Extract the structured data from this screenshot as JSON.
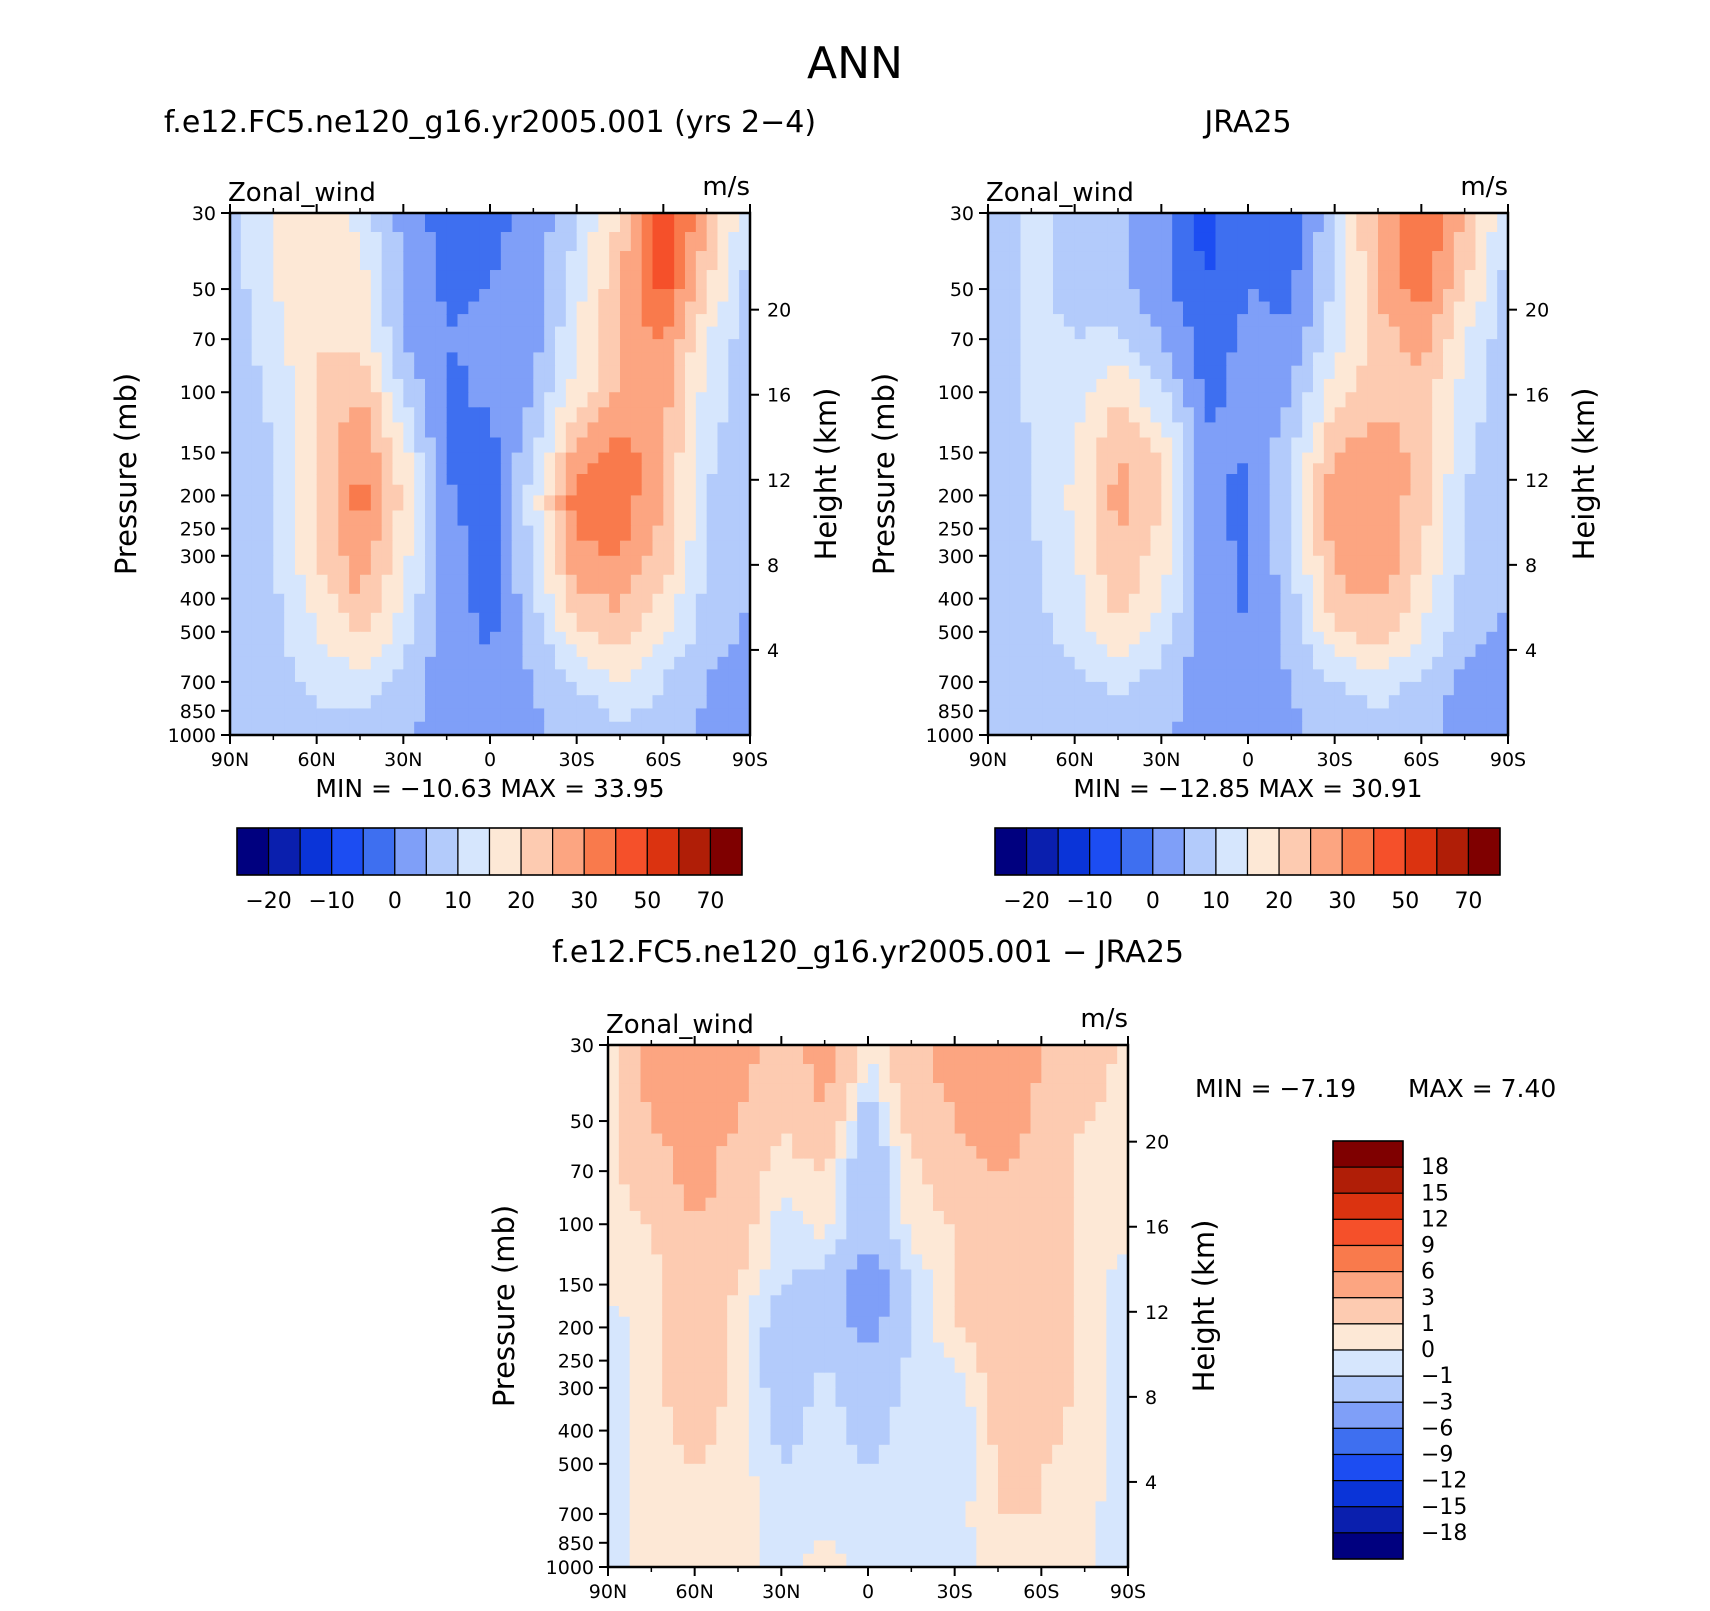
{
  "title": "ANN",
  "chart_data": [
    {
      "type": "heatmap",
      "panel_title": "f.e12.FC5.ne120_g16.yr2005.001 (yrs 2−4)",
      "left_label": "Zonal_wind",
      "right_label": "m/s",
      "ylabel": "Pressure (mb)",
      "ylabel_right": "Height (km)",
      "x_ticks": [
        "90N",
        "60N",
        "30N",
        "0",
        "30S",
        "60S",
        "90S"
      ],
      "y_ticks": [
        "30",
        "50",
        "70",
        "100",
        "150",
        "200",
        "250",
        "300",
        "400",
        "500",
        "700",
        "850",
        "1000"
      ],
      "height_ticks": [
        "20",
        "16",
        "12",
        "8",
        "4"
      ],
      "stats": "MIN = −10.63   MAX =   33.95",
      "colorbar_labels": [
        "−20",
        "−10",
        "0",
        "10",
        "20",
        "30",
        "50",
        "70"
      ],
      "colors": [
        "#00007f",
        "#0a1fae",
        "#0a34d8",
        "#1c4df2",
        "#3e6ff0",
        "#7f9ff8",
        "#b3cbfb",
        "#d6e6fd",
        "#fde8d6",
        "#fdcbb1",
        "#fca581",
        "#f97a4c",
        "#f5502a",
        "#db3310",
        "#b01e07",
        "#7f0000"
      ],
      "lat": [
        "90N",
        "75N",
        "60N",
        "45N",
        "30N",
        "15N",
        "0",
        "15S",
        "30S",
        "45S",
        "60S",
        "75S",
        "90S"
      ],
      "levels_mb": [
        30,
        50,
        70,
        100,
        150,
        200,
        300,
        500,
        700,
        1000
      ],
      "values": [
        [
          2,
          10,
          15,
          8,
          -2,
          -8,
          -6,
          -4,
          5,
          15,
          35,
          20,
          5
        ],
        [
          2,
          10,
          15,
          12,
          0,
          -6,
          -5,
          -3,
          8,
          20,
          32,
          15,
          3
        ],
        [
          2,
          8,
          15,
          14,
          0,
          -5,
          -4,
          -2,
          10,
          20,
          26,
          10,
          2
        ],
        [
          2,
          6,
          15,
          20,
          5,
          -6,
          -4,
          0,
          12,
          20,
          22,
          8,
          2
        ],
        [
          2,
          5,
          15,
          25,
          12,
          -6,
          -7,
          4,
          22,
          28,
          20,
          6,
          2
        ],
        [
          2,
          4,
          15,
          27,
          14,
          -4,
          -8,
          8,
          28,
          28,
          20,
          5,
          2
        ],
        [
          2,
          4,
          15,
          24,
          12,
          -3,
          -7,
          6,
          24,
          25,
          18,
          5,
          1
        ],
        [
          2,
          4,
          10,
          16,
          8,
          -3,
          -6,
          2,
          14,
          18,
          10,
          3,
          -1
        ],
        [
          1,
          3,
          6,
          8,
          3,
          -3,
          -4,
          0,
          5,
          10,
          5,
          0,
          -4
        ],
        [
          1,
          2,
          3,
          3,
          1,
          -2,
          -2,
          -1,
          1,
          3,
          2,
          -1,
          -4
        ]
      ]
    },
    {
      "type": "heatmap",
      "panel_title": "JRA25",
      "left_label": "Zonal_wind",
      "right_label": "m/s",
      "ylabel": "Pressure (mb)",
      "ylabel_right": "Height (km)",
      "x_ticks": [
        "90N",
        "60N",
        "30N",
        "0",
        "30S",
        "60S",
        "90S"
      ],
      "y_ticks": [
        "30",
        "50",
        "70",
        "100",
        "150",
        "200",
        "250",
        "300",
        "400",
        "500",
        "700",
        "850",
        "1000"
      ],
      "height_ticks": [
        "20",
        "16",
        "12",
        "8",
        "4"
      ],
      "stats": "MIN = −12.85   MAX =   30.91",
      "colorbar_labels": [
        "−20",
        "−10",
        "0",
        "10",
        "20",
        "30",
        "50",
        "70"
      ],
      "colors": [
        "#00007f",
        "#0a1fae",
        "#0a34d8",
        "#1c4df2",
        "#3e6ff0",
        "#7f9ff8",
        "#b3cbfb",
        "#d6e6fd",
        "#fde8d6",
        "#fdcbb1",
        "#fca581",
        "#f97a4c",
        "#f5502a",
        "#db3310",
        "#b01e07",
        "#7f0000"
      ],
      "lat": [
        "90N",
        "75N",
        "60N",
        "45N",
        "30N",
        "15N",
        "0",
        "15S",
        "30S",
        "45S",
        "60S",
        "75S",
        "90S"
      ],
      "levels_mb": [
        30,
        50,
        70,
        100,
        150,
        200,
        300,
        500,
        700,
        1000
      ],
      "values": [
        [
          2,
          6,
          4,
          2,
          -4,
          -12,
          -6,
          -8,
          4,
          22,
          30,
          20,
          5
        ],
        [
          2,
          6,
          4,
          2,
          -4,
          -10,
          -5,
          -6,
          6,
          20,
          28,
          15,
          3
        ],
        [
          2,
          6,
          5,
          6,
          0,
          -7,
          -4,
          -4,
          8,
          18,
          22,
          10,
          2
        ],
        [
          2,
          6,
          8,
          14,
          6,
          -6,
          -4,
          0,
          12,
          18,
          18,
          8,
          2
        ],
        [
          2,
          5,
          10,
          20,
          14,
          -4,
          -5,
          4,
          20,
          24,
          18,
          6,
          2
        ],
        [
          2,
          5,
          11,
          22,
          16,
          -4,
          -6,
          5,
          24,
          25,
          17,
          5,
          1
        ],
        [
          2,
          4,
          10,
          20,
          13,
          -3,
          -6,
          4,
          22,
          24,
          16,
          4,
          1
        ],
        [
          2,
          3,
          7,
          14,
          8,
          -3,
          -5,
          2,
          14,
          18,
          10,
          2,
          -1
        ],
        [
          1,
          2,
          4,
          6,
          3,
          -3,
          -4,
          0,
          5,
          8,
          4,
          -2,
          -4
        ],
        [
          1,
          1,
          2,
          3,
          1,
          -2,
          -3,
          -1,
          1,
          2,
          1,
          -2,
          -3
        ]
      ]
    },
    {
      "type": "heatmap",
      "panel_title": "f.e12.FC5.ne120_g16.yr2005.001 − JRA25",
      "left_label": "Zonal_wind",
      "right_label": "m/s",
      "ylabel": "Pressure (mb)",
      "ylabel_right": "Height (km)",
      "x_ticks": [
        "90N",
        "60N",
        "30N",
        "0",
        "30S",
        "60S",
        "90S"
      ],
      "y_ticks": [
        "30",
        "50",
        "70",
        "100",
        "150",
        "200",
        "250",
        "300",
        "400",
        "500",
        "700",
        "850",
        "1000"
      ],
      "height_ticks": [
        "20",
        "16",
        "12",
        "8",
        "4"
      ],
      "stats_min": "MIN =    −7.19",
      "stats_max": "MAX =     7.40",
      "colorbar_labels": [
        "18",
        "15",
        "12",
        "9",
        "6",
        "3",
        "1",
        "0",
        "−1",
        "−3",
        "−6",
        "−9",
        "−12",
        "−15",
        "−18"
      ],
      "colors": [
        "#7f0000",
        "#b01e07",
        "#db3310",
        "#f5502a",
        "#f97a4c",
        "#fca581",
        "#fdcbb1",
        "#fde8d6",
        "#d6e6fd",
        "#b3cbfb",
        "#7f9ff8",
        "#3e6ff0",
        "#1c4df2",
        "#0a34d8",
        "#0a1fae",
        "#00007f"
      ],
      "lat": [
        "90N",
        "75N",
        "60N",
        "45N",
        "30N",
        "15N",
        "0",
        "15S",
        "30S",
        "45S",
        "60S",
        "75S",
        "90S"
      ],
      "levels_mb": [
        30,
        50,
        70,
        100,
        150,
        200,
        300,
        500,
        700,
        1000
      ],
      "values": [
        [
          0.5,
          4,
          5,
          4,
          2,
          4,
          0.5,
          2,
          4,
          6,
          3,
          2,
          0.5
        ],
        [
          0.5,
          3,
          4,
          3,
          1,
          3,
          -2,
          2,
          3,
          5,
          2,
          1,
          0.5
        ],
        [
          0.5,
          2,
          4,
          2,
          0.5,
          1,
          -3,
          0.5,
          2,
          3,
          2,
          0.5,
          0.5
        ],
        [
          0.5,
          1,
          3,
          2,
          -0.5,
          0.5,
          -2,
          0.5,
          1,
          2,
          2,
          0.5,
          0.5
        ],
        [
          0.5,
          0.5,
          2,
          1,
          -1,
          -1.5,
          -5,
          -1,
          1,
          2,
          2,
          0.5,
          -0.5
        ],
        [
          -0.5,
          0.5,
          2,
          0.5,
          -2,
          -1.5,
          -4,
          -1,
          1,
          2,
          2,
          0.5,
          -0.5
        ],
        [
          -0.5,
          0.5,
          2,
          0.5,
          -2,
          -0.5,
          -2,
          -0.5,
          -1,
          2,
          2,
          0.5,
          -0.5
        ],
        [
          -0.5,
          0.5,
          1,
          0.5,
          -1,
          -0.5,
          -1,
          -0.5,
          -1,
          1,
          1,
          0.5,
          -0.5
        ],
        [
          -0.5,
          0.5,
          0.5,
          0.5,
          -0.5,
          -0.5,
          -0.5,
          -0.5,
          -0.5,
          1,
          1,
          0.5,
          -1
        ],
        [
          -0.5,
          0.5,
          0.5,
          0.5,
          -0.5,
          0.5,
          -0.5,
          -0.5,
          -0.5,
          0.5,
          0.5,
          0.5,
          -1
        ]
      ]
    }
  ]
}
